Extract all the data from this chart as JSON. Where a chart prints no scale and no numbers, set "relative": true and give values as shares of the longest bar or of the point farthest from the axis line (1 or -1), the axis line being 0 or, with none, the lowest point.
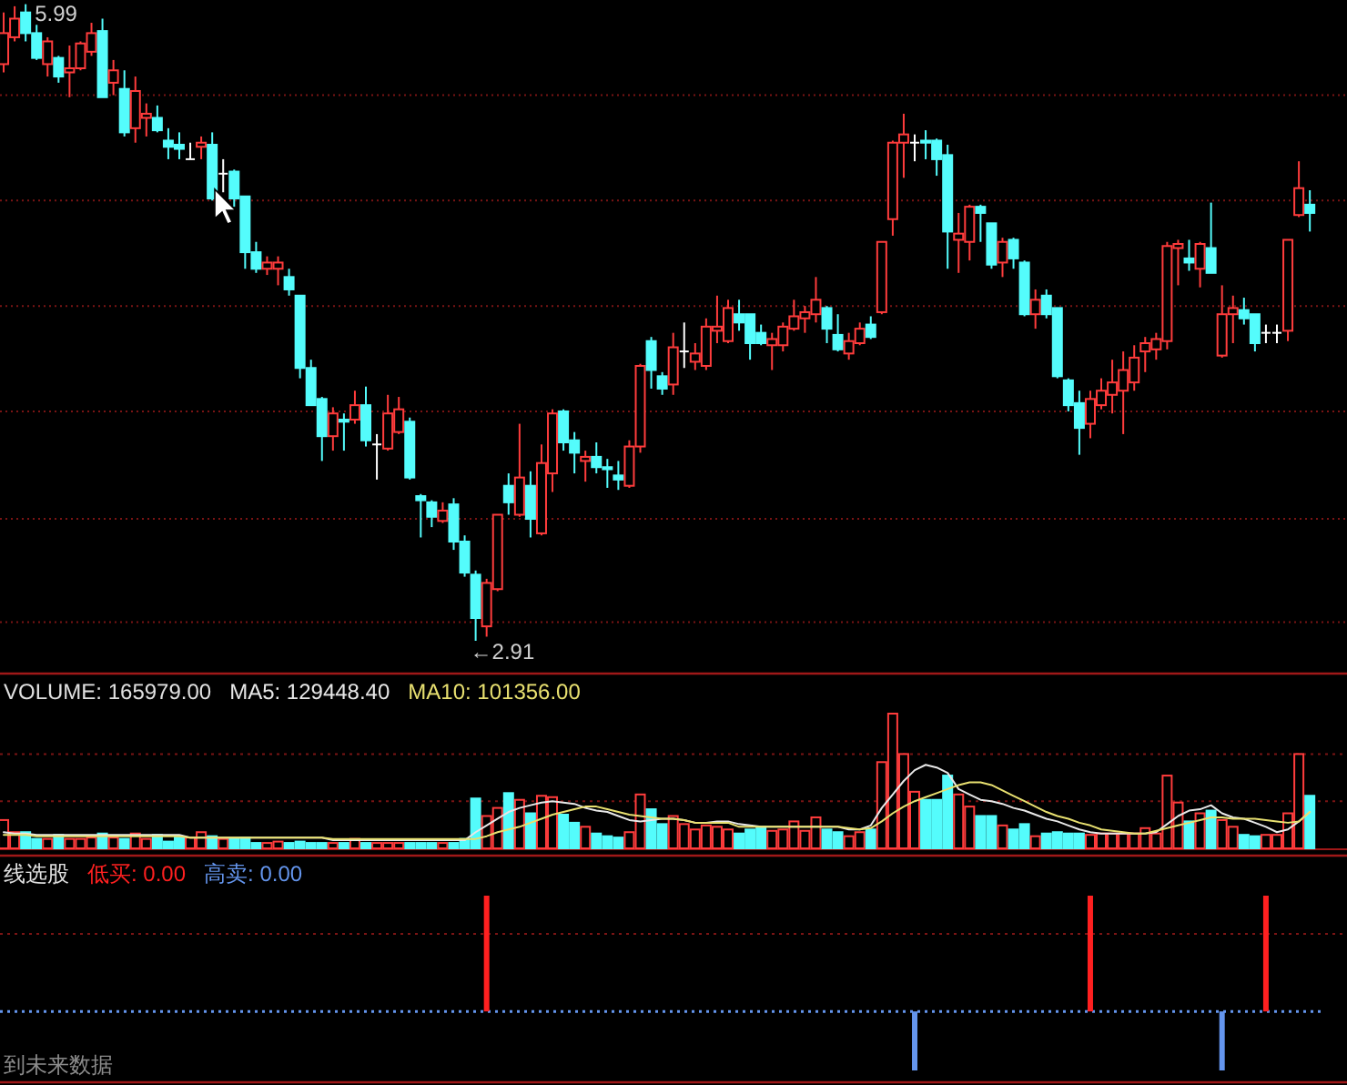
{
  "chart_data": [
    {
      "type": "candlestick",
      "colors": [
        "#ff3c3c",
        "#ff3c3c",
        "#54fcfc",
        "#54fcfc",
        "#ff3c3c",
        "#54fcfc",
        "#ff3c3c",
        "#ff3c3c",
        "#ff3c3c",
        "#54fcfc",
        "#ff3c3c",
        "#54fcfc",
        "#ff3c3c",
        "#ff3c3c",
        "#54fcfc",
        "#54fcfc",
        "#54fcfc",
        "#ffffff",
        "#ff3c3c",
        "#54fcfc",
        "#ffffff",
        "#54fcfc",
        "#54fcfc",
        "#54fcfc",
        "#ff3c3c",
        "#ff3c3c",
        "#54fcfc",
        "#54fcfc",
        "#54fcfc",
        "#54fcfc",
        "#ff3c3c",
        "#54fcfc",
        "#ff3c3c",
        "#54fcfc",
        "#ffffff",
        "#ff3c3c",
        "#ff3c3c",
        "#54fcfc",
        "#54fcfc",
        "#54fcfc",
        "#ff3c3c",
        "#54fcfc",
        "#54fcfc",
        "#54fcfc",
        "#ff3c3c",
        "#ff3c3c",
        "#54fcfc",
        "#ff3c3c",
        "#54fcfc",
        "#ff3c3c",
        "#ff3c3c",
        "#54fcfc",
        "#54fcfc",
        "#ff3c3c",
        "#54fcfc",
        "#54fcfc",
        "#54fcfc",
        "#ff3c3c",
        "#ff3c3c",
        "#54fcfc",
        "#54fcfc",
        "#ff3c3c",
        "#ffffff",
        "#ff3c3c",
        "#ff3c3c",
        "#ff3c3c",
        "#ff3c3c",
        "#54fcfc",
        "#54fcfc",
        "#54fcfc",
        "#ff3c3c",
        "#ff3c3c",
        "#ff3c3c",
        "#ff3c3c",
        "#ff3c3c",
        "#54fcfc",
        "#54fcfc",
        "#ff3c3c",
        "#ff3c3c",
        "#54fcfc",
        "#ff3c3c",
        "#ff3c3c",
        "#ff3c3c",
        "#ffffff",
        "#54fcfc",
        "#54fcfc",
        "#54fcfc",
        "#ff3c3c",
        "#ff3c3c",
        "#54fcfc",
        "#54fcfc",
        "#ff3c3c",
        "#54fcfc",
        "#54fcfc",
        "#ff3c3c",
        "#54fcfc",
        "#54fcfc",
        "#54fcfc",
        "#54fcfc",
        "#ff3c3c",
        "#ff3c3c",
        "#ff3c3c",
        "#ff3c3c",
        "#ff3c3c",
        "#ff3c3c",
        "#ff3c3c",
        "#ff3c3c",
        "#ff3c3c",
        "#54fcfc",
        "#ff3c3c",
        "#54fcfc",
        "#ff3c3c",
        "#ff3c3c",
        "#54fcfc",
        "#54fcfc",
        "#ffffff",
        "#ffffff",
        "#ff3c3c",
        "#ff3c3c",
        "#54fcfc"
      ],
      "grid": "y",
      "yticks": [
        {
          "value": 5.55,
          "label": null
        },
        {
          "value": 5.04,
          "label": null
        },
        {
          "value": 4.53,
          "label": null
        },
        {
          "value": 4.02,
          "label": null
        },
        {
          "value": 3.5,
          "label": null
        },
        {
          "value": 3.0,
          "label": null
        }
      ],
      "annotations": [
        "5.99",
        "←2.91"
      ],
      "categories": [
        null,
        null,
        null,
        null,
        null,
        null,
        null,
        null,
        null,
        null,
        null,
        null,
        null,
        null,
        null,
        null,
        null,
        null,
        null,
        null,
        null,
        null,
        null,
        null,
        null,
        null,
        null,
        null,
        null,
        null,
        null,
        null,
        null,
        null,
        null,
        null,
        null,
        null,
        null,
        null,
        null,
        null,
        null,
        null,
        null,
        null,
        null,
        null,
        null,
        null,
        null,
        null,
        null,
        null,
        null,
        null,
        null,
        null,
        null,
        null,
        null,
        null,
        null,
        null,
        null,
        null,
        null,
        null,
        null,
        null,
        null,
        null,
        null,
        null,
        null,
        null,
        null,
        null,
        null,
        null,
        null,
        null,
        null,
        null,
        null,
        null,
        null,
        null,
        null,
        null,
        null,
        null,
        null,
        null,
        null,
        null,
        null,
        null,
        null,
        null,
        null,
        null,
        null,
        null,
        null,
        null,
        null,
        null,
        null,
        null,
        null,
        null,
        null,
        null,
        null,
        null,
        null,
        null,
        null,
        null
      ],
      "ohlc": [
        [
          5.7,
          5.95,
          5.66,
          5.85
        ],
        [
          5.83,
          5.98,
          5.81,
          5.92
        ],
        [
          5.95,
          5.99,
          5.81,
          5.85
        ],
        [
          5.85,
          5.89,
          5.72,
          5.73
        ],
        [
          5.7,
          5.83,
          5.64,
          5.81
        ],
        [
          5.73,
          5.74,
          5.61,
          5.64
        ],
        [
          5.66,
          5.79,
          5.54,
          5.68
        ],
        [
          5.68,
          5.81,
          5.67,
          5.8
        ],
        [
          5.76,
          5.9,
          5.74,
          5.85
        ],
        [
          5.86,
          5.92,
          5.54,
          5.54
        ],
        [
          5.61,
          5.72,
          5.55,
          5.67
        ],
        [
          5.58,
          5.67,
          5.35,
          5.37
        ],
        [
          5.39,
          5.64,
          5.32,
          5.57
        ],
        [
          5.44,
          5.51,
          5.35,
          5.46
        ],
        [
          5.44,
          5.5,
          5.37,
          5.38
        ],
        [
          5.33,
          5.39,
          5.24,
          5.3
        ],
        [
          5.31,
          5.37,
          5.24,
          5.29
        ],
        [
          5.24,
          5.32,
          5.24,
          5.24
        ],
        [
          5.3,
          5.35,
          5.24,
          5.32
        ],
        [
          5.31,
          5.37,
          5.04,
          5.05
        ],
        [
          5.17,
          5.24,
          5.08,
          5.17
        ],
        [
          5.18,
          5.19,
          5.01,
          5.05
        ],
        [
          5.06,
          5.06,
          4.71,
          4.79
        ],
        [
          4.79,
          4.84,
          4.69,
          4.71
        ],
        [
          4.71,
          4.77,
          4.68,
          4.74
        ],
        [
          4.71,
          4.77,
          4.63,
          4.74
        ],
        [
          4.67,
          4.71,
          4.58,
          4.61
        ],
        [
          4.58,
          4.58,
          4.18,
          4.23
        ],
        [
          4.23,
          4.27,
          4.05,
          4.05
        ],
        [
          4.08,
          4.09,
          3.78,
          3.9
        ],
        [
          3.9,
          4.04,
          3.83,
          4.01
        ],
        [
          3.98,
          4.01,
          3.83,
          3.97
        ],
        [
          3.98,
          4.12,
          3.96,
          4.05
        ],
        [
          4.05,
          4.14,
          3.85,
          3.88
        ],
        [
          3.86,
          3.91,
          3.69,
          3.86
        ],
        [
          3.84,
          4.1,
          3.83,
          4.01
        ],
        [
          3.92,
          4.09,
          3.91,
          4.03
        ],
        [
          3.97,
          3.99,
          3.69,
          3.7
        ],
        [
          3.61,
          3.62,
          3.41,
          3.59
        ],
        [
          3.58,
          3.59,
          3.46,
          3.51
        ],
        [
          3.49,
          3.58,
          3.48,
          3.54
        ],
        [
          3.57,
          3.6,
          3.35,
          3.39
        ],
        [
          3.39,
          3.42,
          3.22,
          3.24
        ],
        [
          3.23,
          3.25,
          2.91,
          3.02
        ],
        [
          2.98,
          3.21,
          2.93,
          3.19
        ],
        [
          3.16,
          3.52,
          3.15,
          3.52
        ],
        [
          3.66,
          3.72,
          3.52,
          3.58
        ],
        [
          3.52,
          3.96,
          3.51,
          3.7
        ],
        [
          3.66,
          3.73,
          3.41,
          3.5
        ],
        [
          3.43,
          3.86,
          3.42,
          3.77
        ],
        [
          3.72,
          4.03,
          3.63,
          4.01
        ],
        [
          4.02,
          4.03,
          3.83,
          3.87
        ],
        [
          3.88,
          3.92,
          3.72,
          3.82
        ],
        [
          3.78,
          3.83,
          3.68,
          3.8
        ],
        [
          3.8,
          3.87,
          3.72,
          3.75
        ],
        [
          3.75,
          3.79,
          3.65,
          3.74
        ],
        [
          3.71,
          3.78,
          3.64,
          3.69
        ],
        [
          3.66,
          3.88,
          3.65,
          3.85
        ],
        [
          3.85,
          4.25,
          3.82,
          4.24
        ],
        [
          4.36,
          4.38,
          4.13,
          4.22
        ],
        [
          4.19,
          4.21,
          4.1,
          4.13
        ],
        [
          4.15,
          4.4,
          4.1,
          4.33
        ],
        [
          4.31,
          4.45,
          4.23,
          4.31
        ],
        [
          4.26,
          4.35,
          4.22,
          4.3
        ],
        [
          4.24,
          4.47,
          4.22,
          4.43
        ],
        [
          4.41,
          4.58,
          4.35,
          4.43
        ],
        [
          4.36,
          4.56,
          4.35,
          4.52
        ],
        [
          4.49,
          4.56,
          4.41,
          4.45
        ],
        [
          4.49,
          4.49,
          4.27,
          4.35
        ],
        [
          4.4,
          4.44,
          4.34,
          4.35
        ],
        [
          4.34,
          4.4,
          4.22,
          4.37
        ],
        [
          4.34,
          4.45,
          4.31,
          4.43
        ],
        [
          4.42,
          4.56,
          4.41,
          4.48
        ],
        [
          4.47,
          4.53,
          4.4,
          4.5
        ],
        [
          4.49,
          4.67,
          4.45,
          4.56
        ],
        [
          4.52,
          4.53,
          4.35,
          4.42
        ],
        [
          4.39,
          4.49,
          4.31,
          4.32
        ],
        [
          4.3,
          4.4,
          4.27,
          4.36
        ],
        [
          4.35,
          4.45,
          4.34,
          4.42
        ],
        [
          4.44,
          4.48,
          4.37,
          4.38
        ],
        [
          4.5,
          4.84,
          4.49,
          4.84
        ],
        [
          4.95,
          5.33,
          4.87,
          5.32
        ],
        [
          5.32,
          5.46,
          5.15,
          5.36
        ],
        [
          5.32,
          5.36,
          5.23,
          5.32
        ],
        [
          5.33,
          5.38,
          5.24,
          5.32
        ],
        [
          5.33,
          5.34,
          5.16,
          5.24
        ],
        [
          5.26,
          5.31,
          4.71,
          4.89
        ],
        [
          4.85,
          4.98,
          4.69,
          4.88
        ],
        [
          4.84,
          5.02,
          4.75,
          5.01
        ],
        [
          5.01,
          5.02,
          4.84,
          4.98
        ],
        [
          4.93,
          4.93,
          4.71,
          4.73
        ],
        [
          4.74,
          4.86,
          4.67,
          4.84
        ],
        [
          4.85,
          4.86,
          4.71,
          4.76
        ],
        [
          4.74,
          4.75,
          4.48,
          4.49
        ],
        [
          4.49,
          4.61,
          4.42,
          4.56
        ],
        [
          4.58,
          4.61,
          4.47,
          4.49
        ],
        [
          4.52,
          4.52,
          4.18,
          4.19
        ],
        [
          4.17,
          4.18,
          4.02,
          4.05
        ],
        [
          4.06,
          4.12,
          3.81,
          3.94
        ],
        [
          3.96,
          4.12,
          3.89,
          4.08
        ],
        [
          4.05,
          4.18,
          4.03,
          4.12
        ],
        [
          4.1,
          4.27,
          4.01,
          4.16
        ],
        [
          4.12,
          4.31,
          3.91,
          4.22
        ],
        [
          4.16,
          4.34,
          4.12,
          4.28
        ],
        [
          4.31,
          4.38,
          4.21,
          4.35
        ],
        [
          4.32,
          4.4,
          4.27,
          4.37
        ],
        [
          4.36,
          4.84,
          4.32,
          4.82
        ],
        [
          4.81,
          4.85,
          4.63,
          4.83
        ],
        [
          4.76,
          4.85,
          4.7,
          4.74
        ],
        [
          4.71,
          4.84,
          4.62,
          4.83
        ],
        [
          4.81,
          5.03,
          4.69,
          4.69
        ],
        [
          4.29,
          4.63,
          4.28,
          4.49
        ],
        [
          4.49,
          4.58,
          4.35,
          4.52
        ],
        [
          4.51,
          4.57,
          4.44,
          4.47
        ],
        [
          4.49,
          4.49,
          4.31,
          4.35
        ],
        [
          4.4,
          4.44,
          4.35,
          4.4
        ],
        [
          4.4,
          4.44,
          4.35,
          4.4
        ],
        [
          4.41,
          4.85,
          4.36,
          4.85
        ],
        [
          4.97,
          5.23,
          4.96,
          5.1
        ],
        [
          5.02,
          5.09,
          4.89,
          4.98
        ]
      ]
    },
    {
      "type": "bar",
      "relative": true,
      "title": "VOLUME: 165979.00",
      "ref_lines": [
        {
          "axis": "y",
          "value": 0.35,
          "color": "#7a1414",
          "line_style": "dotted"
        },
        {
          "axis": "y",
          "value": 0.7,
          "color": "#7a1414",
          "line_style": "dotted"
        }
      ],
      "categories": [
        null,
        null,
        null,
        null,
        null,
        null,
        null,
        null,
        null,
        null,
        null,
        null,
        null,
        null,
        null,
        null,
        null,
        null,
        null,
        null,
        null,
        null,
        null,
        null,
        null,
        null,
        null,
        null,
        null,
        null,
        null,
        null,
        null,
        null,
        null,
        null,
        null,
        null,
        null,
        null,
        null,
        null,
        null,
        null,
        null,
        null,
        null,
        null,
        null,
        null,
        null,
        null,
        null,
        null,
        null,
        null,
        null,
        null,
        null,
        null,
        null,
        null,
        null,
        null,
        null,
        null,
        null,
        null,
        null,
        null,
        null,
        null,
        null,
        null,
        null,
        null,
        null,
        null,
        null,
        null,
        null,
        null,
        null,
        null,
        null,
        null,
        null,
        null,
        null,
        null,
        null,
        null,
        null,
        null,
        null,
        null,
        null,
        null,
        null,
        null,
        null,
        null,
        null,
        null,
        null,
        null,
        null,
        null,
        null,
        null,
        null,
        null,
        null,
        null,
        null,
        null,
        null,
        null,
        null,
        null
      ],
      "series": [
        {
          "values": [
            0.21,
            0.12,
            0.12,
            0.07,
            0.07,
            0.1,
            0.07,
            0.07,
            0.08,
            0.11,
            0.08,
            0.07,
            0.11,
            0.07,
            0.1,
            0.05,
            0.08,
            0.08,
            0.12,
            0.09,
            0.07,
            0.07,
            0.08,
            0.04,
            0.04,
            0.05,
            0.04,
            0.05,
            0.04,
            0.04,
            0.04,
            0.04,
            0.07,
            0.04,
            0.04,
            0.04,
            0.04,
            0.04,
            0.04,
            0.04,
            0.04,
            0.04,
            0.07,
            0.37,
            0.24,
            0.3,
            0.41,
            0.36,
            0.26,
            0.39,
            0.38,
            0.25,
            0.19,
            0.16,
            0.11,
            0.09,
            0.08,
            0.12,
            0.4,
            0.29,
            0.18,
            0.24,
            0.18,
            0.14,
            0.17,
            0.16,
            0.14,
            0.11,
            0.14,
            0.16,
            0.13,
            0.14,
            0.2,
            0.13,
            0.23,
            0.14,
            0.12,
            0.09,
            0.12,
            0.14,
            0.64,
            1,
            0.7,
            0.42,
            0.36,
            0.36,
            0.54,
            0.4,
            0.31,
            0.24,
            0.24,
            0.17,
            0.14,
            0.18,
            0.09,
            0.11,
            0.12,
            0.11,
            0.11,
            0.1,
            0.11,
            0.11,
            0.11,
            0.11,
            0.15,
            0.11,
            0.54,
            0.34,
            0.2,
            0.26,
            0.28,
            0.21,
            0.16,
            0.1,
            0.09,
            0.1,
            0.1,
            0.26,
            0.7,
            0.39
          ],
          "colors": [
            "#ff3c3c",
            "#ff3c3c",
            "#54fcfc",
            "#54fcfc",
            "#ff3c3c",
            "#54fcfc",
            "#ff3c3c",
            "#ff3c3c",
            "#ff3c3c",
            "#54fcfc",
            "#ff3c3c",
            "#54fcfc",
            "#ff3c3c",
            "#ff3c3c",
            "#54fcfc",
            "#54fcfc",
            "#54fcfc",
            "#ff3c3c",
            "#ff3c3c",
            "#54fcfc",
            "#ff3c3c",
            "#54fcfc",
            "#54fcfc",
            "#54fcfc",
            "#ff3c3c",
            "#ff3c3c",
            "#54fcfc",
            "#54fcfc",
            "#54fcfc",
            "#54fcfc",
            "#ff3c3c",
            "#54fcfc",
            "#ff3c3c",
            "#54fcfc",
            "#ff3c3c",
            "#ff3c3c",
            "#ff3c3c",
            "#54fcfc",
            "#54fcfc",
            "#54fcfc",
            "#ff3c3c",
            "#54fcfc",
            "#54fcfc",
            "#54fcfc",
            "#ff3c3c",
            "#ff3c3c",
            "#54fcfc",
            "#ff3c3c",
            "#54fcfc",
            "#ff3c3c",
            "#ff3c3c",
            "#54fcfc",
            "#54fcfc",
            "#ff3c3c",
            "#54fcfc",
            "#54fcfc",
            "#54fcfc",
            "#ff3c3c",
            "#ff3c3c",
            "#54fcfc",
            "#54fcfc",
            "#ff3c3c",
            "#ff3c3c",
            "#ff3c3c",
            "#ff3c3c",
            "#ff3c3c",
            "#ff3c3c",
            "#54fcfc",
            "#54fcfc",
            "#54fcfc",
            "#ff3c3c",
            "#ff3c3c",
            "#ff3c3c",
            "#ff3c3c",
            "#ff3c3c",
            "#54fcfc",
            "#54fcfc",
            "#ff3c3c",
            "#ff3c3c",
            "#54fcfc",
            "#ff3c3c",
            "#ff3c3c",
            "#ff3c3c",
            "#ff3c3c",
            "#54fcfc",
            "#54fcfc",
            "#54fcfc",
            "#ff3c3c",
            "#ff3c3c",
            "#54fcfc",
            "#54fcfc",
            "#ff3c3c",
            "#54fcfc",
            "#54fcfc",
            "#ff3c3c",
            "#54fcfc",
            "#54fcfc",
            "#54fcfc",
            "#54fcfc",
            "#ff3c3c",
            "#ff3c3c",
            "#ff3c3c",
            "#ff3c3c",
            "#ff3c3c",
            "#ff3c3c",
            "#ff3c3c",
            "#ff3c3c",
            "#ff3c3c",
            "#54fcfc",
            "#ff3c3c",
            "#54fcfc",
            "#ff3c3c",
            "#ff3c3c",
            "#54fcfc",
            "#54fcfc",
            "#ff3c3c",
            "#ff3c3c",
            "#ff3c3c",
            "#ff3c3c",
            "#54fcfc"
          ]
        },
        {
          "name": "MA5: 129448.40",
          "type": "line",
          "color": "#e8e8e8",
          "values": [
            0.12,
            0.11,
            0.11,
            0.1,
            0.1,
            0.1,
            0.1,
            0.1,
            0.1,
            0.1,
            0.1,
            0.1,
            0.1,
            0.1,
            0.1,
            0.1,
            0.1,
            0.08,
            0.08,
            0.08,
            0.08,
            0.08,
            0.08,
            0.08,
            0.08,
            0.08,
            0.08,
            0.08,
            0.08,
            0.08,
            0.06,
            0.06,
            0.06,
            0.06,
            0.06,
            0.06,
            0.06,
            0.06,
            0.06,
            0.06,
            0.06,
            0.06,
            0.06,
            0.12,
            0.17,
            0.22,
            0.27,
            0.3,
            0.32,
            0.34,
            0.35,
            0.34,
            0.33,
            0.3,
            0.28,
            0.27,
            0.24,
            0.21,
            0.2,
            0.21,
            0.22,
            0.22,
            0.21,
            0.19,
            0.19,
            0.2,
            0.2,
            0.18,
            0.17,
            0.16,
            0.16,
            0.16,
            0.16,
            0.16,
            0.16,
            0.16,
            0.16,
            0.14,
            0.14,
            0.17,
            0.3,
            0.4,
            0.5,
            0.58,
            0.62,
            0.6,
            0.56,
            0.44,
            0.4,
            0.36,
            0.35,
            0.33,
            0.3,
            0.28,
            0.25,
            0.22,
            0.2,
            0.17,
            0.14,
            0.12,
            0.11,
            0.11,
            0.11,
            0.11,
            0.11,
            0.12,
            0.18,
            0.24,
            0.28,
            0.29,
            0.32,
            0.26,
            0.23,
            0.22,
            0.19,
            0.16,
            0.12,
            0.14,
            0.2,
            0.27
          ]
        },
        {
          "name": "MA10: 101356.00",
          "type": "line",
          "color": "#e8e070",
          "values": [
            0.1,
            0.1,
            0.1,
            0.09,
            0.09,
            0.09,
            0.09,
            0.09,
            0.09,
            0.09,
            0.09,
            0.09,
            0.09,
            0.09,
            0.09,
            0.09,
            0.09,
            0.08,
            0.08,
            0.08,
            0.08,
            0.08,
            0.08,
            0.08,
            0.08,
            0.08,
            0.08,
            0.08,
            0.08,
            0.08,
            0.07,
            0.07,
            0.07,
            0.07,
            0.07,
            0.07,
            0.07,
            0.07,
            0.07,
            0.07,
            0.07,
            0.07,
            0.07,
            0.07,
            0.09,
            0.12,
            0.14,
            0.16,
            0.19,
            0.22,
            0.25,
            0.27,
            0.29,
            0.31,
            0.31,
            0.29,
            0.27,
            0.25,
            0.24,
            0.23,
            0.22,
            0.22,
            0.21,
            0.19,
            0.19,
            0.19,
            0.19,
            0.16,
            0.16,
            0.16,
            0.16,
            0.16,
            0.16,
            0.16,
            0.16,
            0.16,
            0.16,
            0.15,
            0.14,
            0.15,
            0.2,
            0.26,
            0.31,
            0.35,
            0.38,
            0.41,
            0.44,
            0.47,
            0.49,
            0.49,
            0.47,
            0.43,
            0.39,
            0.35,
            0.31,
            0.27,
            0.24,
            0.22,
            0.19,
            0.17,
            0.14,
            0.13,
            0.12,
            0.11,
            0.11,
            0.13,
            0.15,
            0.17,
            0.19,
            0.21,
            0.23,
            0.23,
            0.22,
            0.22,
            0.22,
            0.21,
            0.2,
            0.19,
            0.2,
            0.27
          ]
        }
      ]
    },
    {
      "type": "bar",
      "relative": true,
      "title": "线选股",
      "annotations": [
        "到未来数据"
      ],
      "ref_lines": [
        {
          "axis": "y",
          "value": 0.67,
          "color": "#7a1414",
          "line_style": "dotted"
        },
        {
          "axis": "y",
          "value": 0,
          "color": "#6495ed",
          "line_style": "dotted"
        }
      ],
      "categories": [
        null,
        null,
        null,
        null,
        null,
        null,
        null,
        null,
        null,
        null,
        null,
        null,
        null,
        null,
        null,
        null,
        null,
        null,
        null,
        null,
        null,
        null,
        null,
        null,
        null,
        null,
        null,
        null,
        null,
        null,
        null,
        null,
        null,
        null,
        null,
        null,
        null,
        null,
        null,
        null,
        null,
        null,
        null,
        null,
        null,
        null,
        null,
        null,
        null,
        null,
        null,
        null,
        null,
        null,
        null,
        null,
        null,
        null,
        null,
        null,
        null,
        null,
        null,
        null,
        null,
        null,
        null,
        null,
        null,
        null,
        null,
        null,
        null,
        null,
        null,
        null,
        null,
        null,
        null,
        null,
        null,
        null,
        null,
        null,
        null,
        null,
        null,
        null,
        null,
        null,
        null,
        null,
        null,
        null,
        null,
        null,
        null,
        null,
        null,
        null,
        null,
        null,
        null,
        null,
        null,
        null,
        null,
        null,
        null,
        null,
        null,
        null,
        null,
        null,
        null,
        null,
        null,
        null,
        null,
        null
      ],
      "series": [
        {
          "name": "低买: 0.00",
          "color": "#ff2020",
          "values": [
            null,
            null,
            null,
            null,
            null,
            null,
            null,
            null,
            null,
            null,
            null,
            null,
            null,
            null,
            null,
            null,
            null,
            null,
            null,
            null,
            null,
            null,
            null,
            null,
            null,
            null,
            null,
            null,
            null,
            null,
            null,
            null,
            null,
            null,
            null,
            null,
            null,
            null,
            null,
            null,
            null,
            null,
            null,
            null,
            1,
            null,
            null,
            null,
            null,
            null,
            null,
            null,
            null,
            null,
            null,
            null,
            null,
            null,
            null,
            null,
            null,
            null,
            null,
            null,
            null,
            null,
            null,
            null,
            null,
            null,
            null,
            null,
            null,
            null,
            null,
            null,
            null,
            null,
            null,
            null,
            null,
            null,
            null,
            null,
            null,
            null,
            null,
            null,
            null,
            null,
            null,
            null,
            null,
            null,
            null,
            null,
            null,
            null,
            null,
            1,
            null,
            null,
            null,
            null,
            null,
            null,
            null,
            null,
            null,
            null,
            null,
            null,
            null,
            null,
            null,
            1,
            null,
            null,
            null,
            null
          ]
        },
        {
          "name": "高卖: 0.00",
          "color": "#6495ed",
          "values": [
            null,
            null,
            null,
            null,
            null,
            null,
            null,
            null,
            null,
            null,
            null,
            null,
            null,
            null,
            null,
            null,
            null,
            null,
            null,
            null,
            null,
            null,
            null,
            null,
            null,
            null,
            null,
            null,
            null,
            null,
            null,
            null,
            null,
            null,
            null,
            null,
            null,
            null,
            null,
            null,
            null,
            null,
            null,
            null,
            null,
            null,
            null,
            null,
            null,
            null,
            null,
            null,
            null,
            null,
            null,
            null,
            null,
            null,
            null,
            null,
            null,
            null,
            null,
            null,
            null,
            null,
            null,
            null,
            null,
            null,
            null,
            null,
            null,
            null,
            null,
            null,
            null,
            null,
            null,
            null,
            null,
            null,
            null,
            -0.51,
            null,
            null,
            null,
            null,
            null,
            null,
            null,
            null,
            null,
            null,
            null,
            null,
            null,
            null,
            null,
            null,
            null,
            null,
            null,
            null,
            null,
            null,
            null,
            null,
            null,
            null,
            null,
            -0.51,
            null,
            null,
            null,
            null,
            null,
            null,
            null,
            null
          ]
        }
      ]
    }
  ]
}
